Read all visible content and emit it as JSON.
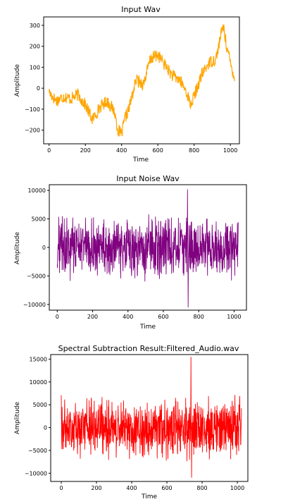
{
  "chart_data": [
    {
      "type": "line",
      "title": "Input Wav",
      "xlabel": "Time",
      "ylabel": "Amplitude",
      "color": "#FFA500",
      "xlim": [
        -30,
        1050
      ],
      "ylim": [
        -265,
        340
      ],
      "xticks": [
        0,
        200,
        400,
        600,
        800,
        1000
      ],
      "yticks": [
        -200,
        -100,
        0,
        100,
        200,
        300
      ],
      "grid": false,
      "series": [
        {
          "x": [
            0,
            40,
            80,
            120,
            160,
            200,
            240,
            280,
            320,
            360,
            380,
            400,
            420,
            440,
            480,
            520,
            560,
            600,
            640,
            680,
            720,
            760,
            780,
            800,
            840,
            880,
            920,
            960,
            980,
            1000,
            1024
          ],
          "values": [
            -20,
            -60,
            -40,
            -50,
            -30,
            -80,
            -150,
            -90,
            -60,
            -110,
            -200,
            -220,
            -140,
            -100,
            40,
            20,
            140,
            160,
            110,
            60,
            40,
            -20,
            -80,
            -40,
            60,
            120,
            140,
            300,
            200,
            120,
            50
          ]
        }
      ]
    },
    {
      "type": "line",
      "title": "Input Noise Wav",
      "xlabel": "Time",
      "ylabel": "Amplitude",
      "color": "#800080",
      "xlim": [
        -45,
        1070
      ],
      "ylim": [
        -11000,
        11000
      ],
      "xticks": [
        0,
        200,
        400,
        600,
        800,
        1000
      ],
      "yticks": [
        -10000,
        -5000,
        0,
        5000,
        10000
      ],
      "grid": false,
      "series": [
        {
          "x": [
            0,
            1024
          ],
          "values": [
            -10500,
            10200
          ]
        }
      ]
    },
    {
      "type": "line",
      "title": "Spectral Subtraction Result:Filtered_Audio.wav",
      "xlabel": "Time",
      "ylabel": "Amplitude",
      "color": "#FF0000",
      "xlim": [
        -60,
        1060
      ],
      "ylim": [
        -11800,
        16000
      ],
      "xticks": [
        0,
        200,
        400,
        600,
        800,
        1000
      ],
      "yticks": [
        -10000,
        -5000,
        0,
        5000,
        10000,
        15000
      ],
      "grid": false,
      "series": [
        {
          "x": [
            0,
            1024
          ],
          "values": [
            -11000,
            15500
          ]
        }
      ]
    }
  ]
}
